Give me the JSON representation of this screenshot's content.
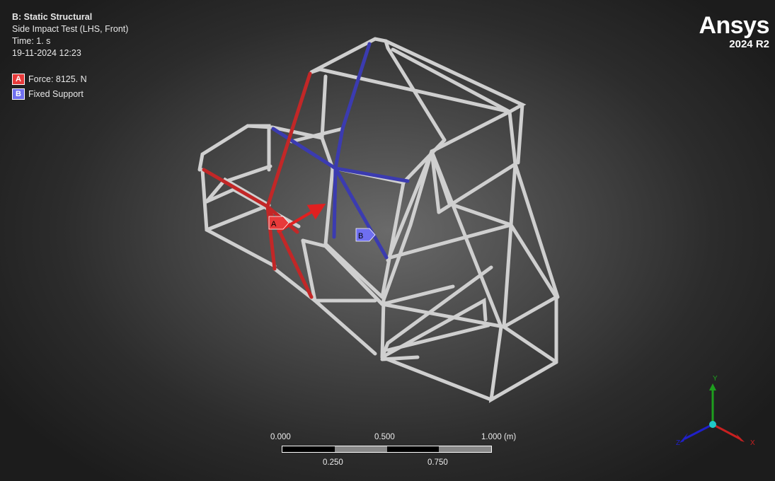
{
  "analysis": {
    "title": "B: Static Structural",
    "subtitle": "Side Impact Test (LHS, Front)",
    "time": "Time: 1. s",
    "datetime": "19-11-2024 12:23"
  },
  "legend": [
    {
      "letter": "A",
      "label": "Force: 8125. N",
      "color": "#e83a3a"
    },
    {
      "letter": "B",
      "label": "Fixed Support",
      "color": "#6f6ff0"
    }
  ],
  "logo": {
    "brand": "Ansys",
    "version": "2024 R2"
  },
  "scale": {
    "top_labels": [
      "0.000",
      "0.500",
      "1.000 (m)"
    ],
    "bottom_labels": [
      "0.250",
      "0.750"
    ]
  },
  "triad": {
    "x": "X",
    "y": "Y",
    "z": "Z"
  },
  "annotations": {
    "force_tag": "A",
    "support_tag": "B"
  },
  "colors": {
    "frame": "#c8c8c8",
    "force": "#c22727",
    "support": "#3b3bb0"
  }
}
